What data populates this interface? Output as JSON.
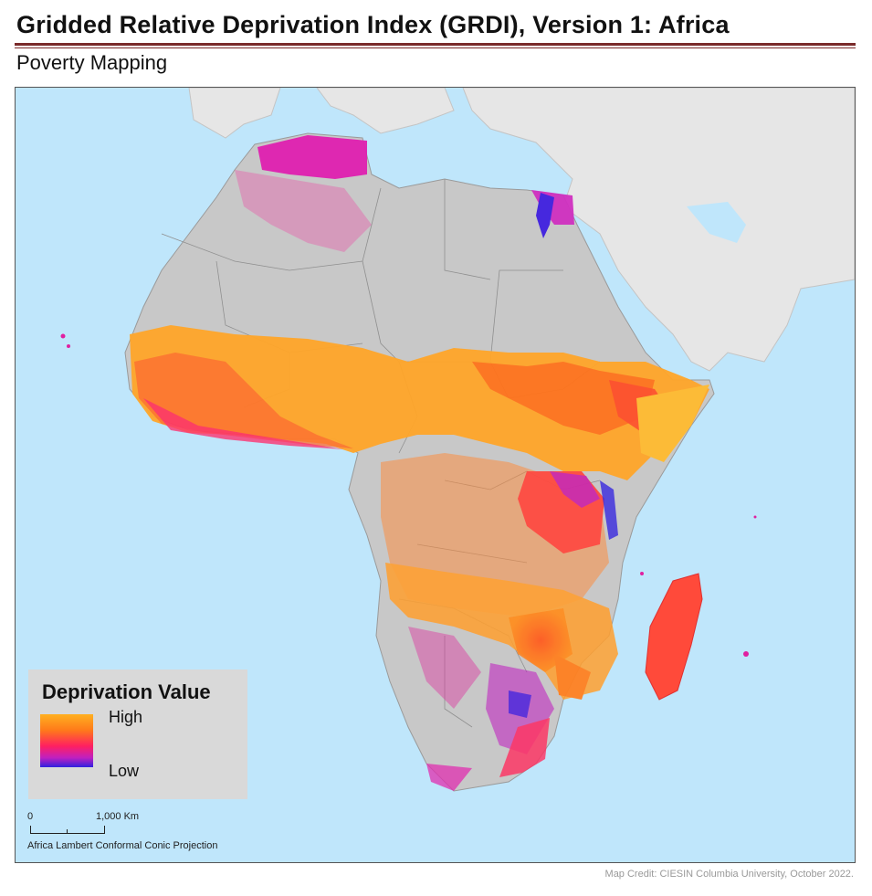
{
  "header": {
    "title": "Gridded Relative Deprivation Index (GRDI), Version 1: Africa",
    "subtitle": "Poverty Mapping"
  },
  "legend": {
    "title": "Deprivation Value",
    "high_label": "High",
    "low_label": "Low",
    "ramp_colors": [
      "#ffb020",
      "#ff7a1a",
      "#ff2060",
      "#c020c0",
      "#3020e0"
    ]
  },
  "scale_bar": {
    "start_label": "0",
    "end_label": "1,000 Km",
    "projection": "Africa Lambert Conformal Conic Projection"
  },
  "credit": "Map Credit: CIESIN Columbia University, October 2022.",
  "map_colors": {
    "ocean": "#bfe6fb",
    "land_other": "#e6e6e6",
    "land_nodata": "#c8c8c8",
    "high": "#ffb020",
    "mid_high": "#ff7a1a",
    "mid": "#ff2060",
    "mid_low": "#c020c0",
    "low": "#3020e0"
  }
}
